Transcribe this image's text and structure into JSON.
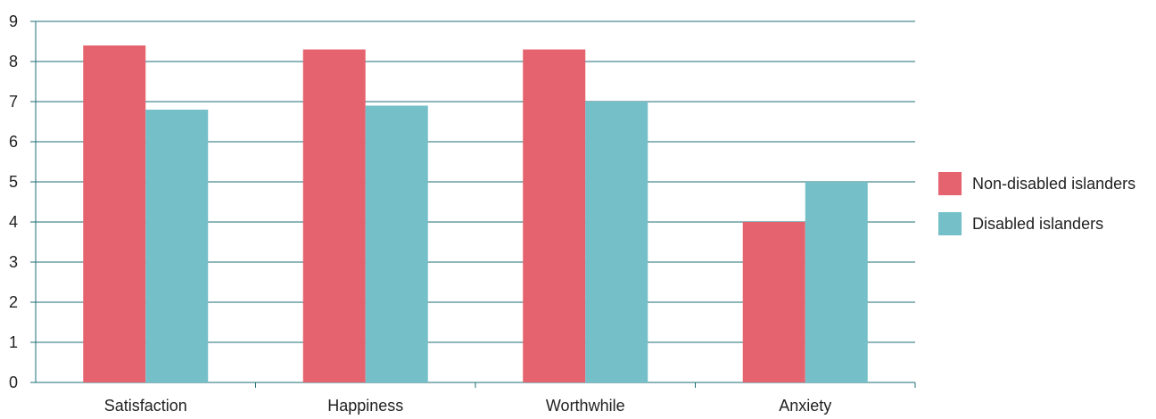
{
  "chart_data": {
    "type": "bar",
    "categories": [
      "Satisfaction",
      "Happiness",
      "Worthwhile",
      "Anxiety"
    ],
    "series": [
      {
        "name": "Non-disabled islanders",
        "color": "#e5636f",
        "values": [
          8.4,
          8.3,
          8.3,
          4.0
        ]
      },
      {
        "name": "Disabled islanders",
        "color": "#75bfc8",
        "values": [
          6.8,
          6.9,
          7.0,
          5.0
        ]
      }
    ],
    "ylim": [
      0,
      9
    ],
    "yticks": [
      "0",
      "1",
      "2",
      "3",
      "4",
      "5",
      "6",
      "7",
      "8",
      "9"
    ],
    "grid": true,
    "grid_color": "#1e6e74",
    "legend_position": "right"
  }
}
